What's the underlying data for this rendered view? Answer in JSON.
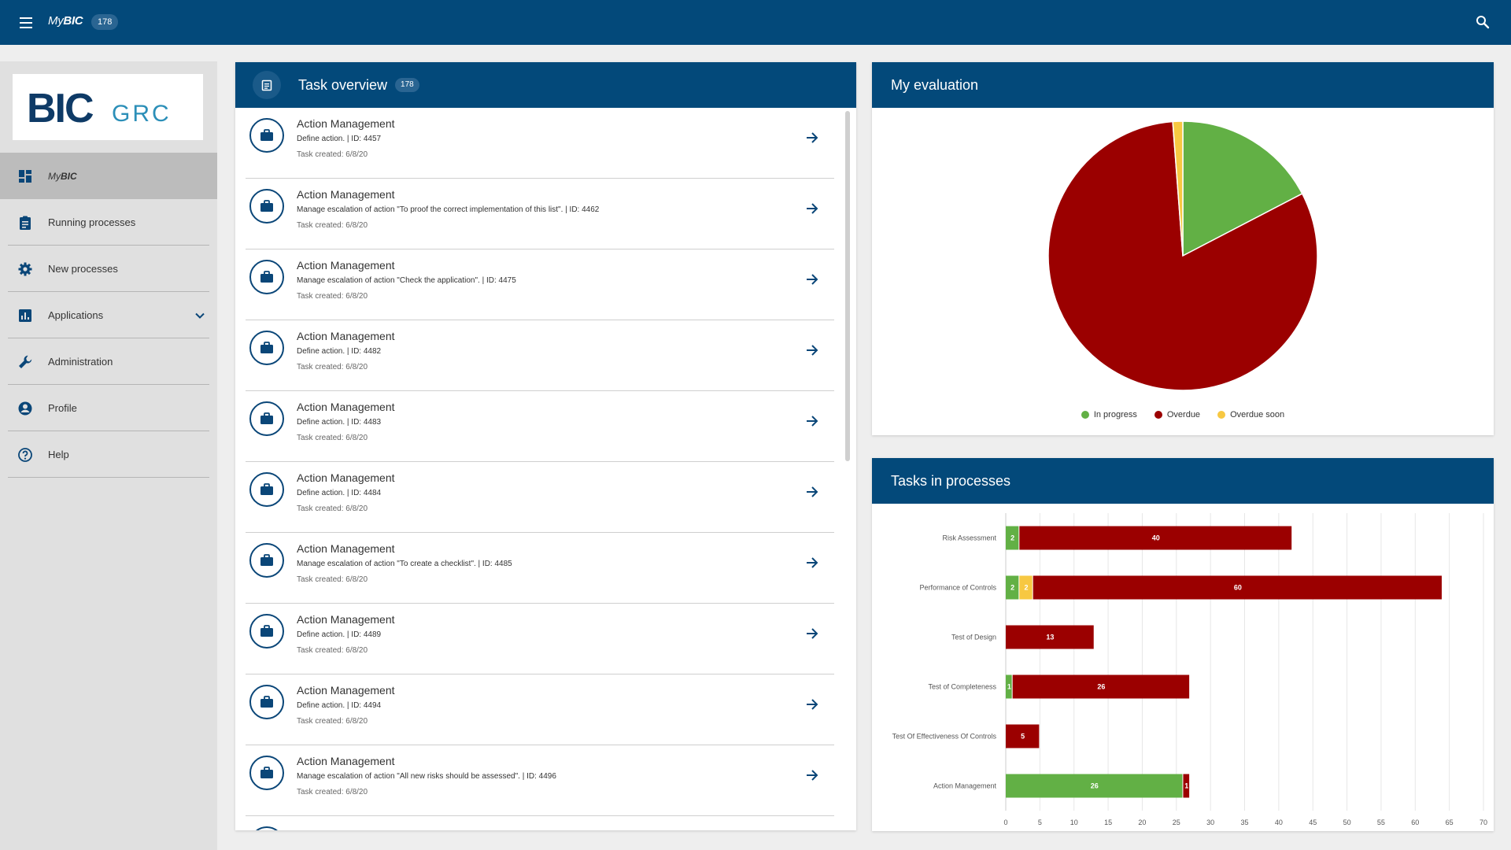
{
  "topbar": {
    "brand_prefix": "My",
    "brand_suffix": "BIC",
    "badge": "178"
  },
  "sidebar": {
    "logo_main": "BIC",
    "logo_sub": "GRC",
    "items": [
      {
        "label_prefix": "My",
        "label": "BIC",
        "icon": "dashboard-icon",
        "active": true
      },
      {
        "label": "Running processes",
        "icon": "clipboard-icon"
      },
      {
        "label": "New processes",
        "icon": "gear-icon"
      },
      {
        "label": "Applications",
        "icon": "bar-chart-icon",
        "expandable": true
      },
      {
        "label": "Administration",
        "icon": "wrench-icon"
      },
      {
        "label": "Profile",
        "icon": "account-circle-icon"
      },
      {
        "label": "Help",
        "icon": "help-circle-icon"
      }
    ]
  },
  "task_overview": {
    "title": "Task overview",
    "count": "178",
    "tasks": [
      {
        "title": "Action Management",
        "desc": "Define action. | ID: 4457",
        "date": "Task created: 6/8/20"
      },
      {
        "title": "Action Management",
        "desc": "Manage escalation of action \"To proof the correct implementation of this list\". | ID: 4462",
        "date": "Task created: 6/8/20"
      },
      {
        "title": "Action Management",
        "desc": "Manage escalation of action \"Check the application\". | ID: 4475",
        "date": "Task created: 6/8/20"
      },
      {
        "title": "Action Management",
        "desc": "Define action. | ID: 4482",
        "date": "Task created: 6/8/20"
      },
      {
        "title": "Action Management",
        "desc": "Define action. | ID: 4483",
        "date": "Task created: 6/8/20"
      },
      {
        "title": "Action Management",
        "desc": "Define action. | ID: 4484",
        "date": "Task created: 6/8/20"
      },
      {
        "title": "Action Management",
        "desc": "Manage escalation of action \"To create a checklist\". | ID: 4485",
        "date": "Task created: 6/8/20"
      },
      {
        "title": "Action Management",
        "desc": "Define action. | ID: 4489",
        "date": "Task created: 6/8/20"
      },
      {
        "title": "Action Management",
        "desc": "Define action. | ID: 4494",
        "date": "Task created: 6/8/20"
      },
      {
        "title": "Action Management",
        "desc": "Manage escalation of action \"All new risks should be assessed\". | ID: 4496",
        "date": "Task created: 6/8/20"
      },
      {
        "title": "",
        "desc": "",
        "date": ""
      }
    ]
  },
  "evaluation": {
    "title": "My evaluation"
  },
  "tasks_in_processes": {
    "title": "Tasks in processes"
  },
  "colors": {
    "primary": "#03497a",
    "in_progress": "#62b045",
    "overdue": "#9b0000",
    "overdue_soon": "#f7c842"
  },
  "chart_data": [
    {
      "type": "pie",
      "title": "",
      "labels": [
        "In progress",
        "Overdue",
        "Overdue soon"
      ],
      "values": [
        29,
        136,
        2
      ],
      "legend": "bottom"
    },
    {
      "type": "bar",
      "orientation": "horizontal",
      "stacked": true,
      "title": "",
      "categories": [
        "Risk Assessment",
        "Performance of Controls",
        "Test of Design",
        "Test of Completeness",
        "Test Of Effectiveness Of Controls",
        "Action Management"
      ],
      "series": [
        {
          "name": "In progress",
          "values": [
            2,
            2,
            0,
            1,
            0,
            26
          ]
        },
        {
          "name": "Overdue soon",
          "values": [
            0,
            2,
            0,
            0,
            0,
            0
          ]
        },
        {
          "name": "Overdue",
          "values": [
            40,
            60,
            13,
            26,
            5,
            1
          ]
        }
      ],
      "xlim": [
        0,
        70
      ],
      "xticks": [
        0,
        5,
        10,
        15,
        20,
        25,
        30,
        35,
        40,
        45,
        50,
        55,
        60,
        65,
        70
      ],
      "grid": true
    }
  ]
}
